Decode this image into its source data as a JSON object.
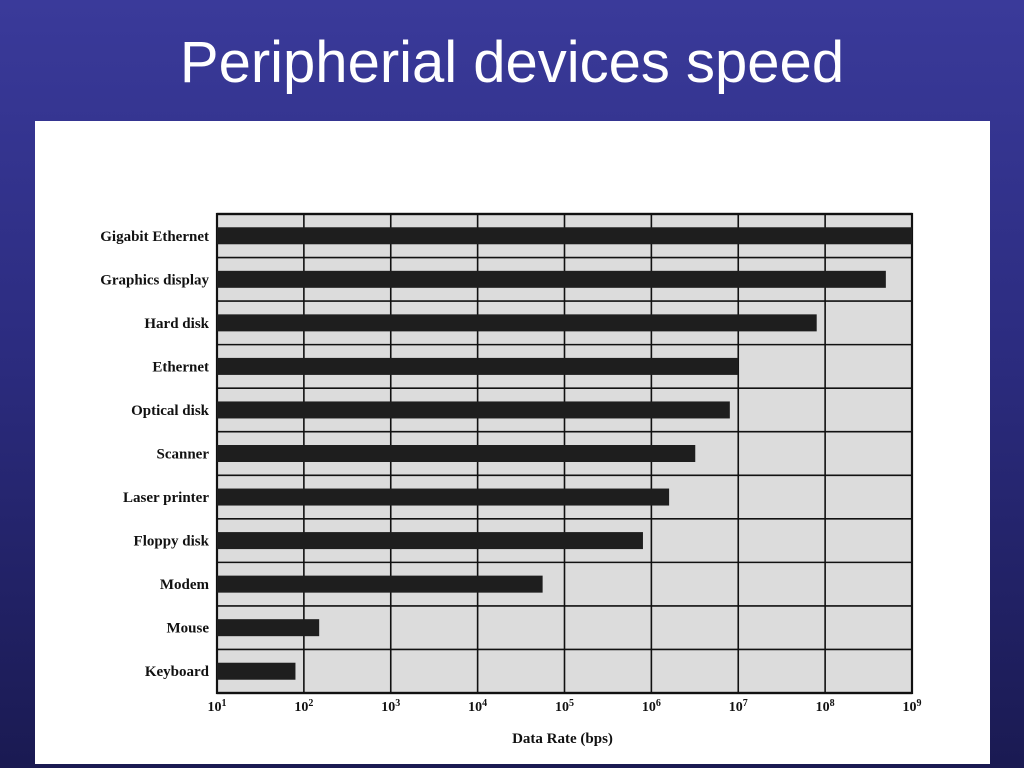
{
  "slide": {
    "title": "Peripherial devices speed"
  },
  "colors": {
    "background_top": "#3a3a9a",
    "background_bottom": "#1a1a52",
    "plot_background": "#dcdcdc",
    "bar": "#1e1e1e",
    "grid": "#111111"
  },
  "chart_data": {
    "type": "bar",
    "orientation": "horizontal",
    "x_scale": "log",
    "xlabel": "Data Rate (bps)",
    "xlim": [
      10,
      1000000000
    ],
    "x_ticks": [
      {
        "base": "10",
        "exp": "1",
        "value": 10
      },
      {
        "base": "10",
        "exp": "2",
        "value": 100
      },
      {
        "base": "10",
        "exp": "3",
        "value": 1000
      },
      {
        "base": "10",
        "exp": "4",
        "value": 10000
      },
      {
        "base": "10",
        "exp": "5",
        "value": 100000
      },
      {
        "base": "10",
        "exp": "6",
        "value": 1000000
      },
      {
        "base": "10",
        "exp": "7",
        "value": 10000000
      },
      {
        "base": "10",
        "exp": "8",
        "value": 100000000
      },
      {
        "base": "10",
        "exp": "9",
        "value": 1000000000
      }
    ],
    "categories": [
      "Gigabit Ethernet",
      "Graphics display",
      "Hard disk",
      "Ethernet",
      "Optical disk",
      "Scanner",
      "Laser printer",
      "Floppy disk",
      "Modem",
      "Mouse",
      "Keyboard"
    ],
    "values": [
      1000000000,
      500000000,
      80000000,
      10000000,
      8000000,
      3200000,
      1600000,
      800000,
      56000,
      150,
      80
    ],
    "grid": true
  }
}
